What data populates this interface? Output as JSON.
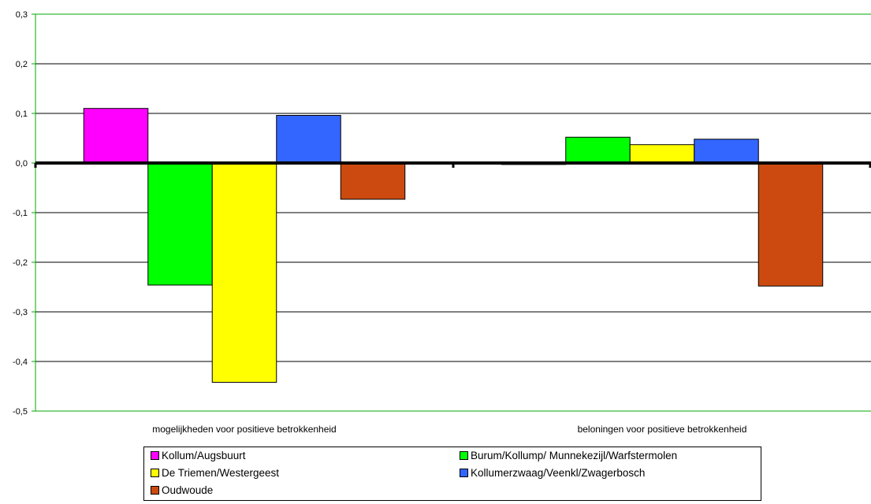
{
  "chart_data": {
    "type": "bar",
    "categories": [
      "mogelijkheden voor positieve betrokkenheid",
      "beloningen voor positieve betrokkenheid"
    ],
    "series": [
      {
        "name": "Kollum/Augsbuurt",
        "color": "#ff00ff",
        "values": [
          0.11,
          -0.003
        ]
      },
      {
        "name": "Burum/Kollump/ Munnekezijl/Warfstermolen",
        "color": "#00ff00",
        "values": [
          -0.246,
          0.052
        ]
      },
      {
        "name": "De Triemen/Westergeest",
        "color": "#ffff00",
        "values": [
          -0.442,
          0.037
        ]
      },
      {
        "name": "Kollumerzwaag/Veenkl/Zwagerbosch",
        "color": "#3366ff",
        "values": [
          0.096,
          0.048
        ]
      },
      {
        "name": "Oudwoude",
        "color": "#cc4a0f",
        "values": [
          -0.073,
          -0.248
        ]
      }
    ],
    "ylim": [
      -0.5,
      0.3
    ],
    "yticks": [
      "0,3",
      "0,2",
      "0,1",
      "0,0",
      "-0,1",
      "-0,2",
      "-0,3",
      "-0,4",
      "-0,5"
    ],
    "ytick_values": [
      0.3,
      0.2,
      0.1,
      0.0,
      -0.1,
      -0.2,
      -0.3,
      -0.4,
      -0.5
    ],
    "title": "",
    "xlabel": "",
    "ylabel": "",
    "grid": true,
    "legend_position": "bottom",
    "colors": {
      "grid": "#000000",
      "axis": "#00aa00",
      "zero_line": "#000000"
    }
  }
}
